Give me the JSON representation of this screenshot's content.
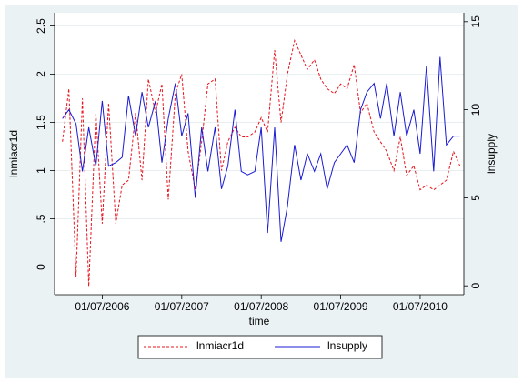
{
  "chart_data": {
    "type": "line",
    "x_label": "time",
    "y_label": "lnmiacr1d",
    "y2_label": "lnsupply",
    "x": [
      2006.0,
      2006.08,
      2006.17,
      2006.25,
      2006.33,
      2006.42,
      2006.5,
      2006.58,
      2006.67,
      2006.75,
      2006.83,
      2006.92,
      2007.0,
      2007.08,
      2007.17,
      2007.25,
      2007.33,
      2007.42,
      2007.5,
      2007.58,
      2007.67,
      2007.75,
      2007.83,
      2007.92,
      2008.0,
      2008.08,
      2008.17,
      2008.25,
      2008.33,
      2008.42,
      2008.5,
      2008.58,
      2008.67,
      2008.75,
      2008.83,
      2008.92,
      2009.0,
      2009.08,
      2009.17,
      2009.25,
      2009.33,
      2009.42,
      2009.5,
      2009.58,
      2009.67,
      2009.75,
      2009.83,
      2009.92,
      2010.0,
      2010.08,
      2010.17,
      2010.25,
      2010.33,
      2010.42,
      2010.5,
      2010.58,
      2010.67,
      2010.75,
      2010.83,
      2010.92,
      2011.0
    ],
    "series": [
      {
        "name": "lnmiacr1d",
        "color": "#e8141e",
        "dash": true,
        "values": [
          1.3,
          1.85,
          -0.1,
          1.75,
          -0.2,
          1.6,
          0.45,
          1.7,
          0.45,
          0.85,
          0.9,
          1.6,
          0.9,
          1.95,
          1.6,
          1.9,
          0.7,
          1.8,
          2.0,
          1.2,
          0.8,
          1.3,
          1.9,
          1.95,
          1.0,
          1.3,
          1.45,
          1.35,
          1.35,
          1.4,
          1.55,
          1.4,
          2.25,
          1.5,
          2.0,
          2.35,
          2.2,
          2.05,
          2.15,
          1.95,
          1.85,
          1.8,
          1.9,
          1.85,
          2.1,
          1.6,
          1.7,
          1.4,
          1.3,
          1.2,
          1.0,
          1.35,
          0.95,
          1.05,
          0.8,
          0.85,
          0.8,
          0.85,
          0.9,
          1.2,
          1.05
        ]
      },
      {
        "name": "lnsupply",
        "color": "#1a1ad4",
        "axis": "y2",
        "values": [
          9.5,
          10.0,
          9.2,
          6.5,
          9.0,
          6.8,
          10.5,
          6.8,
          7.0,
          7.3,
          10.8,
          8.5,
          11.0,
          9.0,
          10.5,
          7.0,
          9.5,
          11.5,
          8.5,
          9.8,
          5.0,
          9.0,
          6.5,
          9.0,
          5.5,
          6.8,
          10.0,
          6.5,
          6.3,
          6.5,
          9.0,
          3.0,
          9.0,
          2.5,
          4.5,
          8.0,
          6.0,
          7.5,
          6.5,
          7.5,
          5.5,
          7.0,
          7.5,
          8.0,
          7.0,
          10.0,
          11.0,
          11.5,
          9.5,
          11.5,
          8.5,
          11.0,
          8.5,
          10.0,
          7.5,
          12.5,
          6.5,
          13.0,
          8.0,
          8.5,
          8.5
        ]
      }
    ],
    "xlim": [
      2005.9,
      2011.05
    ],
    "xticks": [
      {
        "value": 2006.5,
        "label": "01/07/2006"
      },
      {
        "value": 2007.5,
        "label": "01/07/2007"
      },
      {
        "value": 2008.5,
        "label": "01/07/2008"
      },
      {
        "value": 2009.5,
        "label": "01/07/2009"
      },
      {
        "value": 2010.5,
        "label": "01/07/2010"
      }
    ],
    "ylim": [
      -0.25,
      2.6
    ],
    "yticks": [
      0,
      {
        "value": 0.5,
        "label": ".5"
      },
      1,
      1.5,
      2,
      2.5
    ],
    "y2lim": [
      -0.3,
      15.3
    ],
    "y2ticks": [
      0,
      5,
      10,
      15
    ],
    "grid": true,
    "legend": "bottom"
  }
}
